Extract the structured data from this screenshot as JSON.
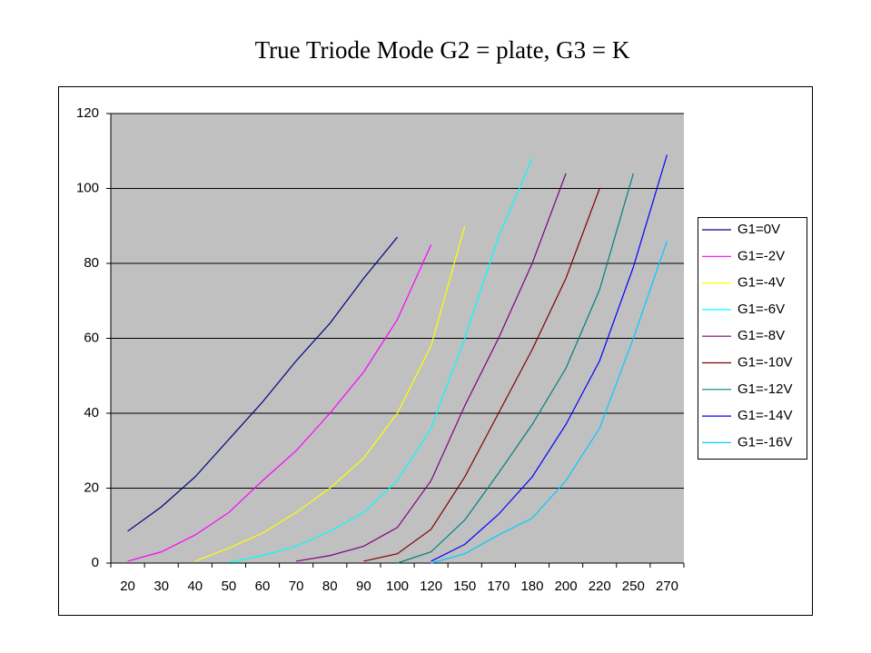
{
  "chart_data": {
    "type": "line",
    "title": "True Triode Mode G2 = plate, G3 = K",
    "categories": [
      20,
      30,
      40,
      50,
      60,
      70,
      80,
      90,
      100,
      120,
      150,
      170,
      180,
      200,
      220,
      250,
      270
    ],
    "ylim": [
      0,
      120
    ],
    "yticks": [
      0,
      20,
      40,
      60,
      80,
      100,
      120
    ],
    "grid": true,
    "legend": "right",
    "series": [
      {
        "name": "G1=0V",
        "color": "#000080",
        "values": [
          8.5,
          15,
          23,
          33,
          43,
          54,
          64,
          76,
          87,
          null,
          null,
          null,
          null,
          null,
          null,
          null,
          null
        ]
      },
      {
        "name": "G1=-2V",
        "color": "#ff00ff",
        "values": [
          0.5,
          3,
          7.5,
          13.5,
          22,
          30,
          40,
          51,
          65,
          85,
          null,
          null,
          null,
          null,
          null,
          null,
          null
        ]
      },
      {
        "name": "G1=-4V",
        "color": "#ffff00",
        "values": [
          null,
          null,
          0.5,
          4,
          8,
          13.5,
          20,
          28,
          40,
          58,
          90,
          null,
          null,
          null,
          null,
          null,
          null
        ]
      },
      {
        "name": "G1=-6V",
        "color": "#00ffff",
        "values": [
          null,
          null,
          null,
          0.2,
          2,
          4.5,
          8.5,
          13.5,
          22,
          36,
          60,
          87,
          108,
          null,
          null,
          null,
          null
        ]
      },
      {
        "name": "G1=-8V",
        "color": "#800080",
        "values": [
          null,
          null,
          null,
          null,
          null,
          0.5,
          2,
          4.5,
          9.5,
          22,
          42,
          60,
          80,
          104,
          null,
          null,
          null
        ]
      },
      {
        "name": "G1=-10V",
        "color": "#800000",
        "values": [
          null,
          null,
          null,
          null,
          null,
          null,
          null,
          0.5,
          2.5,
          9,
          23,
          40,
          57,
          76,
          100,
          null,
          null
        ]
      },
      {
        "name": "G1=-12V",
        "color": "#008080",
        "values": [
          null,
          null,
          null,
          null,
          null,
          null,
          null,
          null,
          0,
          3,
          11.5,
          24,
          37,
          52,
          73,
          104,
          null
        ]
      },
      {
        "name": "G1=-14V",
        "color": "#0000ff",
        "values": [
          null,
          null,
          null,
          null,
          null,
          null,
          null,
          null,
          null,
          0.5,
          5,
          13,
          23,
          37,
          54,
          79,
          109
        ]
      },
      {
        "name": "G1=-16V",
        "color": "#00ccff",
        "values": [
          null,
          null,
          null,
          null,
          null,
          null,
          null,
          null,
          null,
          0,
          2.5,
          7.5,
          12,
          22,
          36,
          60,
          86
        ]
      }
    ]
  }
}
